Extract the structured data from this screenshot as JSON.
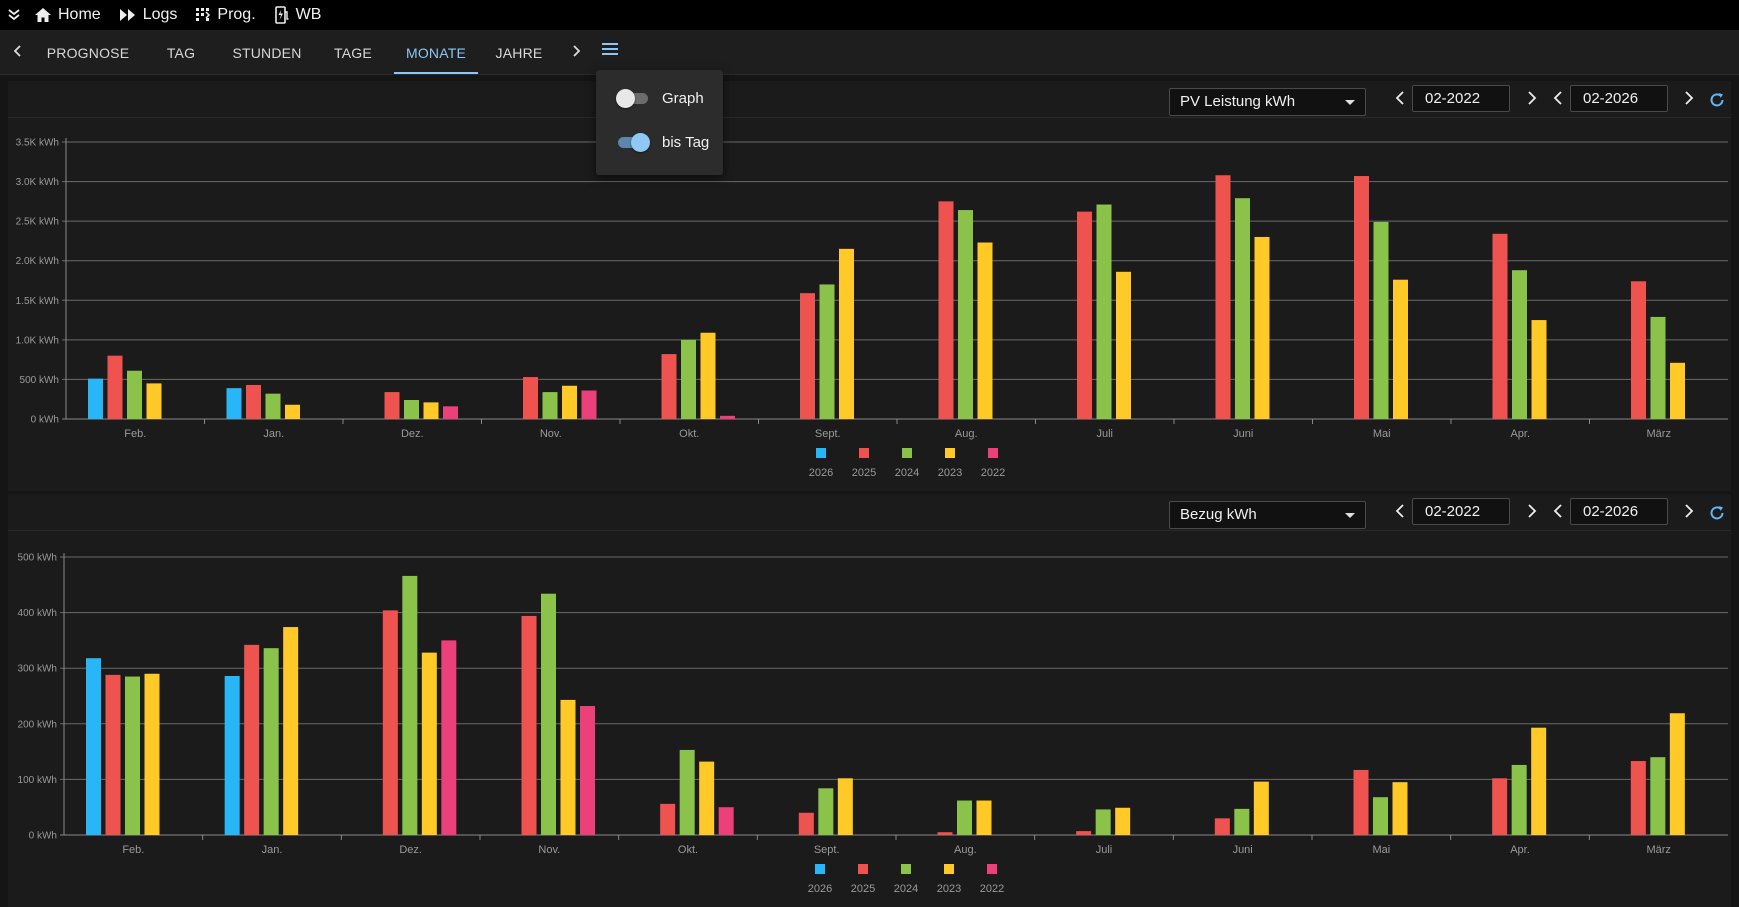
{
  "nav": {
    "items": [
      {
        "label": "Home",
        "icon": "home-icon"
      },
      {
        "label": "Logs",
        "icon": "fast-forward-icon"
      },
      {
        "label": "Prog.",
        "icon": "grid-dots-icon"
      },
      {
        "label": "WB",
        "icon": "ev-station-icon"
      }
    ]
  },
  "tabs": {
    "items": [
      "PROGNOSE",
      "TAG",
      "STUNDEN",
      "TAGE",
      "MONATE",
      "JAHRE"
    ],
    "active": "MONATE"
  },
  "popover": {
    "graph_label": "Graph",
    "graph_on": false,
    "bis_tag_label": "bis Tag",
    "bis_tag_on": true
  },
  "colors": {
    "2026": "#29b6f6",
    "2025": "#ef5350",
    "2024": "#8bc34a",
    "2023": "#ffca28",
    "2022": "#ec407a"
  },
  "panels": {
    "top": {
      "select_label": "PV Leistung kWh",
      "from_date": "02-2022",
      "to_date": "02-2026"
    },
    "bottom": {
      "select_label": "Bezug kWh",
      "from_date": "02-2022",
      "to_date": "02-2026"
    }
  },
  "chart_data": [
    {
      "type": "bar",
      "title": "PV Leistung kWh",
      "categories": [
        "Feb.",
        "Jan.",
        "Dez.",
        "Nov.",
        "Okt.",
        "Sept.",
        "Aug.",
        "Juli",
        "Juni",
        "Mai",
        "Apr.",
        "März"
      ],
      "ylim": [
        0,
        3500
      ],
      "yticks": [
        0,
        500,
        1000,
        1500,
        2000,
        2500,
        3000,
        3500
      ],
      "ytick_labels": [
        "0 kWh",
        "500 kWh",
        "1.0K kWh",
        "1.5K kWh",
        "2.0K kWh",
        "2.5K kWh",
        "3.0K kWh",
        "3.5K kWh"
      ],
      "series": [
        {
          "name": "2026",
          "values": [
            510,
            390,
            null,
            null,
            null,
            null,
            null,
            null,
            null,
            null,
            null,
            null
          ]
        },
        {
          "name": "2025",
          "values": [
            800,
            430,
            340,
            530,
            820,
            1590,
            2750,
            2620,
            3080,
            3070,
            2340,
            1740
          ]
        },
        {
          "name": "2024",
          "values": [
            610,
            320,
            240,
            340,
            1000,
            1700,
            2640,
            2710,
            2790,
            2490,
            1880,
            1290
          ]
        },
        {
          "name": "2023",
          "values": [
            450,
            180,
            210,
            420,
            1090,
            2150,
            2230,
            1860,
            2300,
            1760,
            1250,
            710
          ]
        },
        {
          "name": "2022",
          "values": [
            null,
            null,
            160,
            360,
            40,
            null,
            null,
            null,
            null,
            null,
            null,
            null
          ]
        }
      ],
      "legend": [
        "2026",
        "2025",
        "2024",
        "2023",
        "2022"
      ]
    },
    {
      "type": "bar",
      "title": "Bezug kWh",
      "categories": [
        "Feb.",
        "Jan.",
        "Dez.",
        "Nov.",
        "Okt.",
        "Sept.",
        "Aug.",
        "Juli",
        "Juni",
        "Mai",
        "Apr.",
        "März"
      ],
      "ylim": [
        0,
        500
      ],
      "yticks": [
        0,
        100,
        200,
        300,
        400,
        500
      ],
      "ytick_labels": [
        "0 kWh",
        "100 kWh",
        "200 kWh",
        "300 kWh",
        "400 kWh",
        "500 kWh"
      ],
      "series": [
        {
          "name": "2026",
          "values": [
            318,
            286,
            null,
            null,
            null,
            null,
            null,
            null,
            null,
            null,
            null,
            null
          ]
        },
        {
          "name": "2025",
          "values": [
            288,
            342,
            404,
            394,
            56,
            40,
            5,
            7,
            30,
            117,
            102,
            133
          ]
        },
        {
          "name": "2024",
          "values": [
            285,
            336,
            466,
            434,
            153,
            84,
            62,
            46,
            47,
            68,
            126,
            140
          ]
        },
        {
          "name": "2023",
          "values": [
            290,
            374,
            328,
            243,
            132,
            102,
            62,
            49,
            96,
            95,
            193,
            219
          ]
        },
        {
          "name": "2022",
          "values": [
            null,
            null,
            350,
            232,
            50,
            null,
            null,
            null,
            null,
            null,
            null,
            null
          ]
        }
      ],
      "legend": [
        "2026",
        "2025",
        "2024",
        "2023",
        "2022"
      ]
    }
  ]
}
